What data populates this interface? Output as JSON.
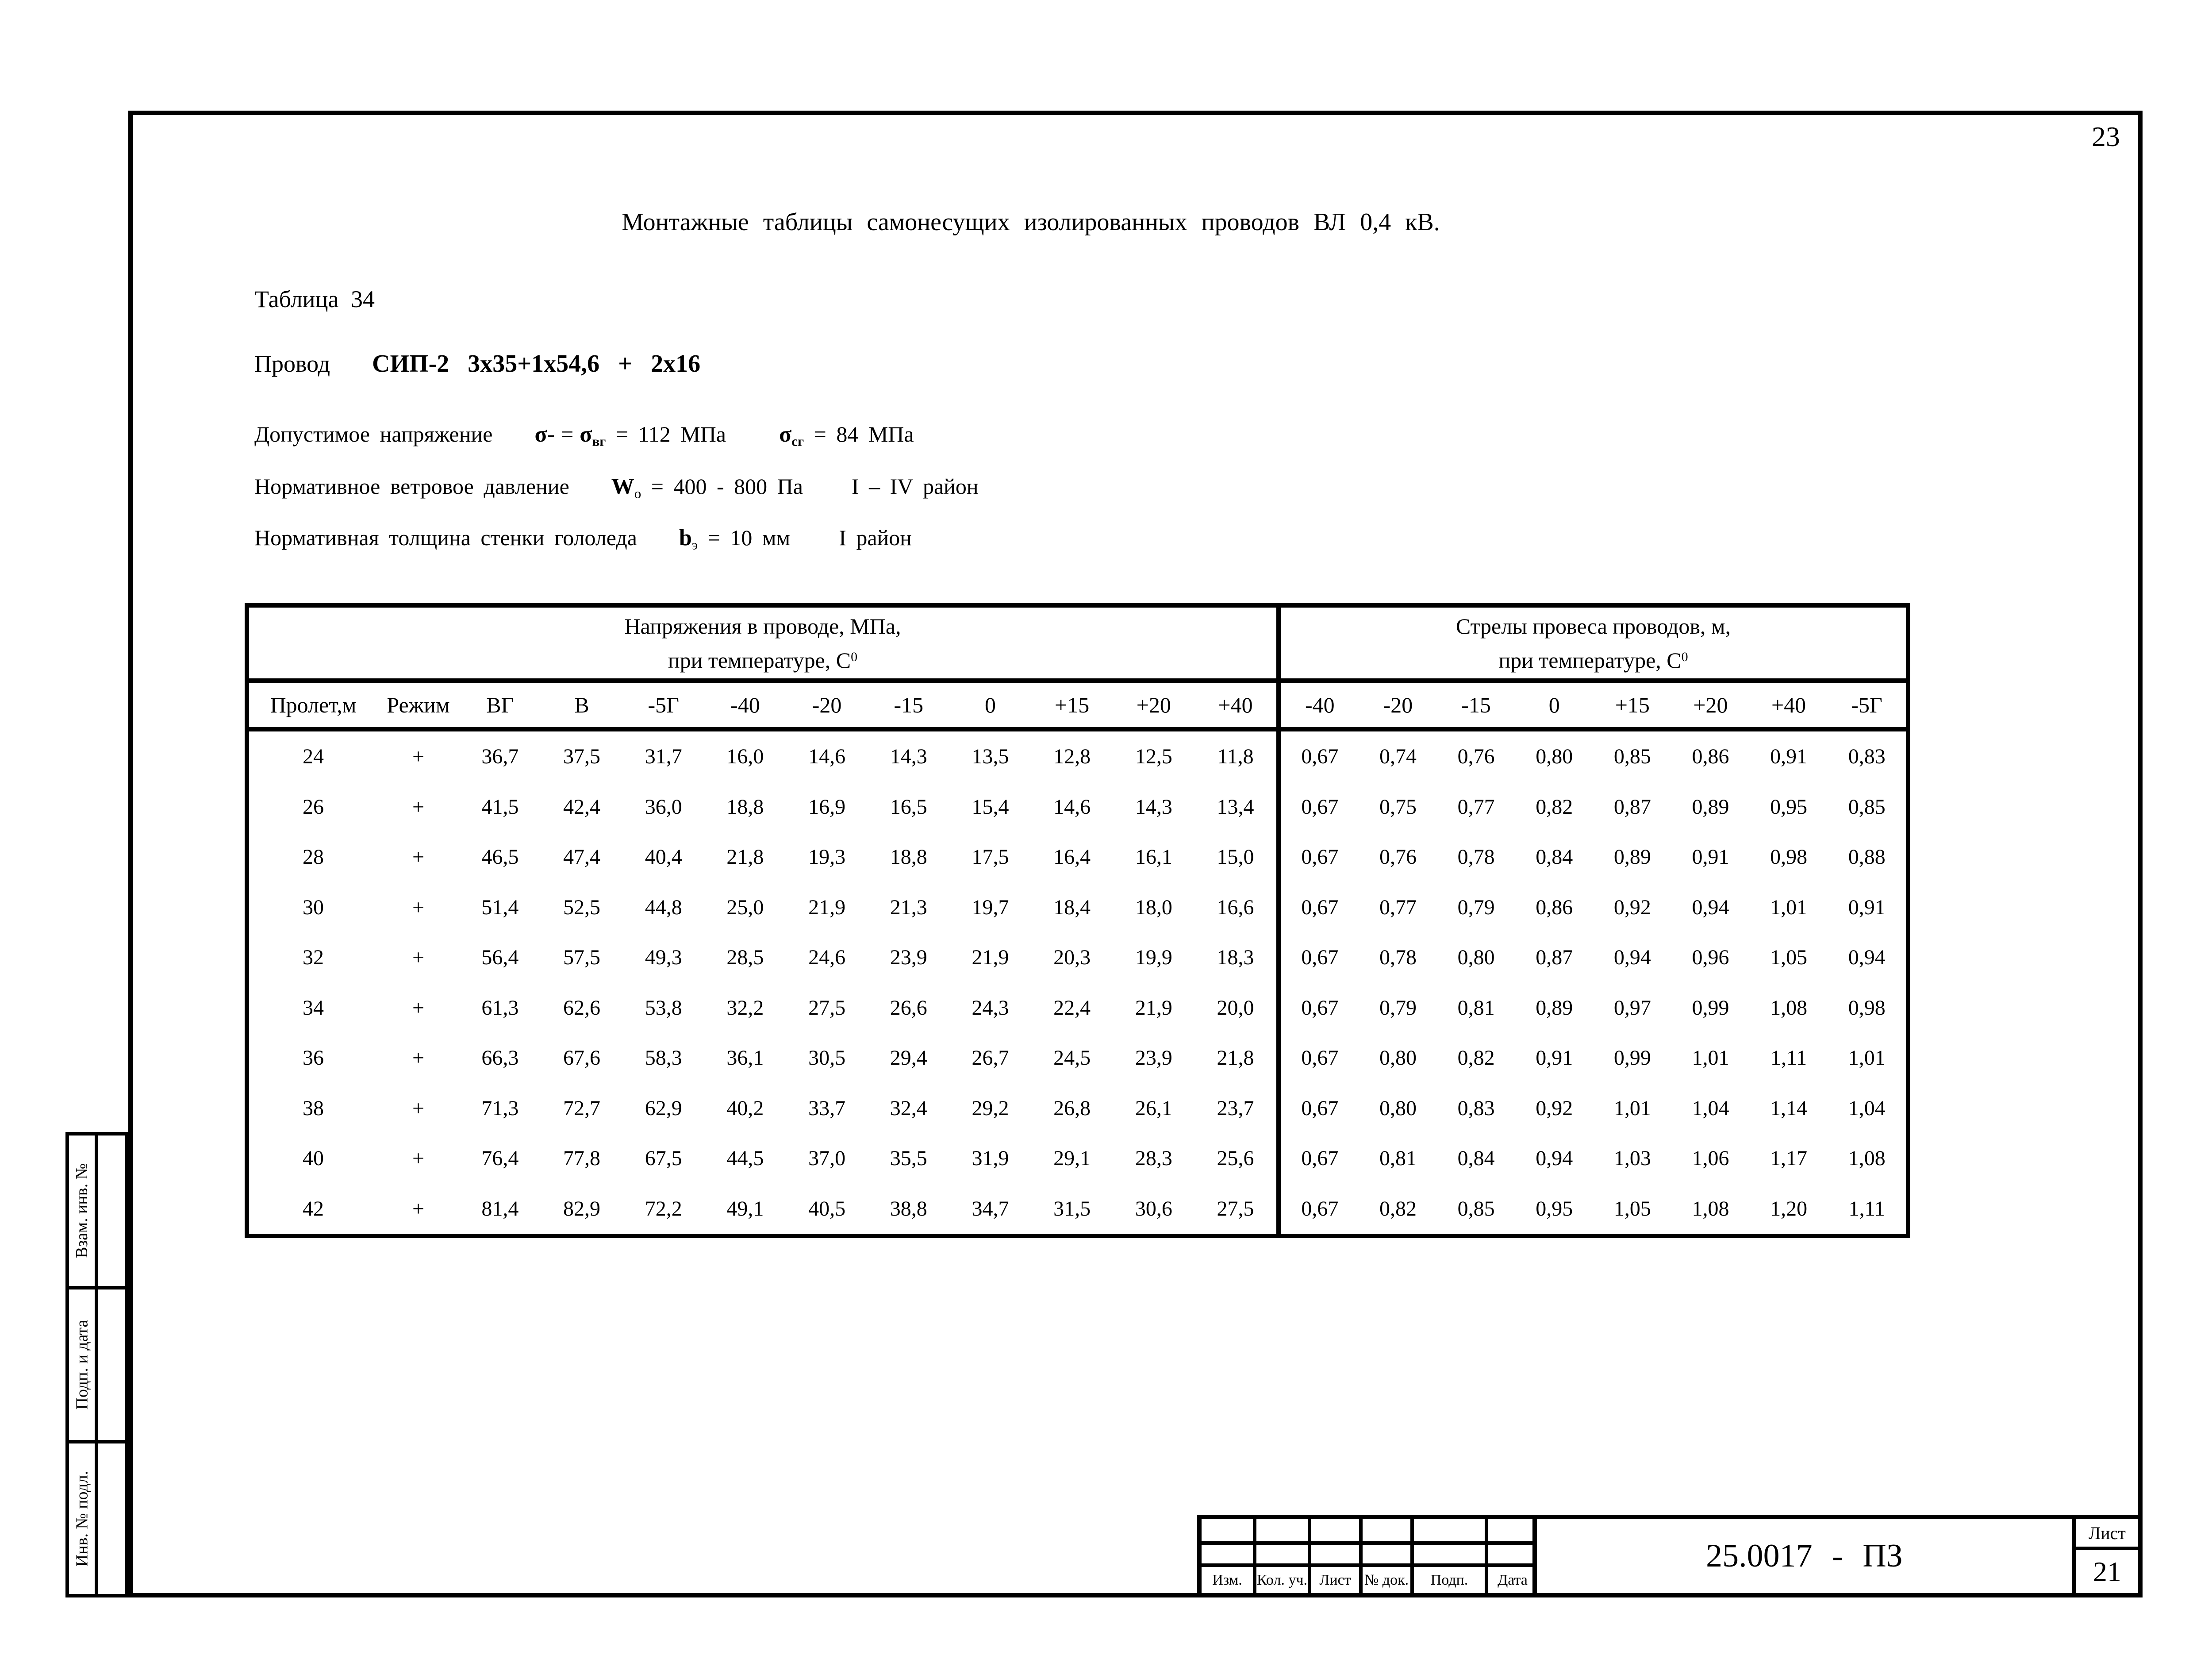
{
  "page": {
    "number": "23"
  },
  "header": {
    "title": "Монтажные таблицы самонесущих изолированных проводов ВЛ 0,4 кВ."
  },
  "doc": {
    "table_caption": "Таблица 34",
    "wire_label": "Провод",
    "wire_value": "СИП-2 3х35+1х54,6 + 2х16",
    "stress_line": {
      "label": "Допустимое напряжение",
      "sigma1": "σ-",
      "eq": "=",
      "sigma2": "σ",
      "sigma2_sub": "вг",
      "value1": "= 112 МПа",
      "sigma3": "σ",
      "sigma3_sub": "сг",
      "value2": "= 84 МПа"
    },
    "wind_line": {
      "label": "Нормативное ветровое давление",
      "symbol": "W",
      "symbol_sub": "о",
      "value": "= 400 - 800 Па",
      "zone": "I – IV район"
    },
    "ice_line": {
      "label": "Нормативная толщина стенки гололеда",
      "symbol": "b",
      "symbol_sub": "э",
      "value": "= 10 мм",
      "zone": "I район"
    }
  },
  "table": {
    "left_title_1": "Напряжения в проводе, МПа,",
    "left_title_2": "при температуре, С",
    "left_title_sup": "0",
    "right_title_1": "Стрелы провеса проводов, м,",
    "right_title_2": "при температуре, С",
    "right_title_sup": "0",
    "columns_left": [
      "Пролет,м",
      "Режим",
      "ВГ",
      "В",
      "-5Г",
      "-40",
      "-20",
      "-15",
      "0",
      "+15",
      "+20",
      "+40"
    ],
    "columns_right": [
      "-40",
      "-20",
      "-15",
      "0",
      "+15",
      "+20",
      "+40",
      "-5Г"
    ],
    "rows": [
      {
        "span": "24",
        "mode": "+",
        "stress": [
          "36,7",
          "37,5",
          "31,7",
          "16,0",
          "14,6",
          "14,3",
          "13,5",
          "12,8",
          "12,5",
          "11,8"
        ],
        "sag": [
          "0,67",
          "0,74",
          "0,76",
          "0,80",
          "0,85",
          "0,86",
          "0,91",
          "0,83"
        ]
      },
      {
        "span": "26",
        "mode": "+",
        "stress": [
          "41,5",
          "42,4",
          "36,0",
          "18,8",
          "16,9",
          "16,5",
          "15,4",
          "14,6",
          "14,3",
          "13,4"
        ],
        "sag": [
          "0,67",
          "0,75",
          "0,77",
          "0,82",
          "0,87",
          "0,89",
          "0,95",
          "0,85"
        ]
      },
      {
        "span": "28",
        "mode": "+",
        "stress": [
          "46,5",
          "47,4",
          "40,4",
          "21,8",
          "19,3",
          "18,8",
          "17,5",
          "16,4",
          "16,1",
          "15,0"
        ],
        "sag": [
          "0,67",
          "0,76",
          "0,78",
          "0,84",
          "0,89",
          "0,91",
          "0,98",
          "0,88"
        ]
      },
      {
        "span": "30",
        "mode": "+",
        "stress": [
          "51,4",
          "52,5",
          "44,8",
          "25,0",
          "21,9",
          "21,3",
          "19,7",
          "18,4",
          "18,0",
          "16,6"
        ],
        "sag": [
          "0,67",
          "0,77",
          "0,79",
          "0,86",
          "0,92",
          "0,94",
          "1,01",
          "0,91"
        ]
      },
      {
        "span": "32",
        "mode": "+",
        "stress": [
          "56,4",
          "57,5",
          "49,3",
          "28,5",
          "24,6",
          "23,9",
          "21,9",
          "20,3",
          "19,9",
          "18,3"
        ],
        "sag": [
          "0,67",
          "0,78",
          "0,80",
          "0,87",
          "0,94",
          "0,96",
          "1,05",
          "0,94"
        ]
      },
      {
        "span": "34",
        "mode": "+",
        "stress": [
          "61,3",
          "62,6",
          "53,8",
          "32,2",
          "27,5",
          "26,6",
          "24,3",
          "22,4",
          "21,9",
          "20,0"
        ],
        "sag": [
          "0,67",
          "0,79",
          "0,81",
          "0,89",
          "0,97",
          "0,99",
          "1,08",
          "0,98"
        ]
      },
      {
        "span": "36",
        "mode": "+",
        "stress": [
          "66,3",
          "67,6",
          "58,3",
          "36,1",
          "30,5",
          "29,4",
          "26,7",
          "24,5",
          "23,9",
          "21,8"
        ],
        "sag": [
          "0,67",
          "0,80",
          "0,82",
          "0,91",
          "0,99",
          "1,01",
          "1,11",
          "1,01"
        ]
      },
      {
        "span": "38",
        "mode": "+",
        "stress": [
          "71,3",
          "72,7",
          "62,9",
          "40,2",
          "33,7",
          "32,4",
          "29,2",
          "26,8",
          "26,1",
          "23,7"
        ],
        "sag": [
          "0,67",
          "0,80",
          "0,83",
          "0,92",
          "1,01",
          "1,04",
          "1,14",
          "1,04"
        ]
      },
      {
        "span": "40",
        "mode": "+",
        "stress": [
          "76,4",
          "77,8",
          "67,5",
          "44,5",
          "37,0",
          "35,5",
          "31,9",
          "29,1",
          "28,3",
          "25,6"
        ],
        "sag": [
          "0,67",
          "0,81",
          "0,84",
          "0,94",
          "1,03",
          "1,06",
          "1,17",
          "1,08"
        ]
      },
      {
        "span": "42",
        "mode": "+",
        "stress": [
          "81,4",
          "82,9",
          "72,2",
          "49,1",
          "40,5",
          "38,8",
          "34,7",
          "31,5",
          "30,6",
          "27,5"
        ],
        "sag": [
          "0,67",
          "0,82",
          "0,85",
          "0,95",
          "1,05",
          "1,08",
          "1,20",
          "1,11"
        ]
      }
    ]
  },
  "side_strip": {
    "labels": [
      "Взам. инв. №",
      "Подп. и дата",
      "Инв. № подл."
    ]
  },
  "title_block": {
    "revision_columns": [
      "Изм.",
      "Кол. уч.",
      "Лист",
      "№ док.",
      "Подп.",
      "Дата"
    ],
    "document_code": "25.0017 - ПЗ",
    "sheet_label": "Лист",
    "sheet_number": "21"
  }
}
